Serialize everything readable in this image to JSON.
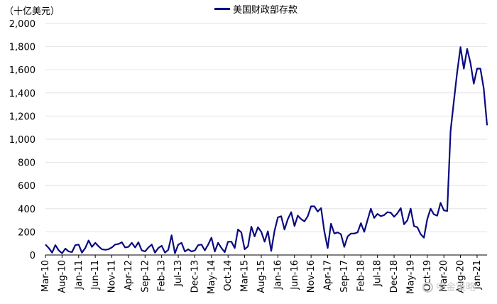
{
  "chart_data": {
    "type": "line",
    "unit_label": "（十亿美元）",
    "ylim": [
      0,
      2000
    ],
    "yticks": [
      0,
      200,
      400,
      600,
      800,
      1000,
      1200,
      1400,
      1600,
      1800,
      2000
    ],
    "ytick_labels": [
      "0",
      "200",
      "400",
      "600",
      "800",
      "1,000",
      "1,200",
      "1,400",
      "1,600",
      "1,800",
      "2,000"
    ],
    "xtick_labels": [
      "Mar-10",
      "Aug-10",
      "Jan-11",
      "Jun-11",
      "Nov-11",
      "Apr-12",
      "Sep-12",
      "Feb-13",
      "Jul-13",
      "Dec-13",
      "May-14",
      "Oct-14",
      "Mar-15",
      "Aug-15",
      "Jan-16",
      "Jun-16",
      "Nov-16",
      "Apr-17",
      "Sep-17",
      "Feb-18",
      "Jul-18",
      "Dec-18",
      "May-19",
      "Oct-19",
      "Mar-20",
      "Aug-20",
      "Jan-21"
    ],
    "series": [
      {
        "name": "美国财政部存款",
        "color": "#0a0a80",
        "values": [
          90,
          60,
          20,
          85,
          40,
          15,
          55,
          30,
          25,
          85,
          90,
          20,
          60,
          125,
          70,
          105,
          75,
          50,
          45,
          50,
          65,
          90,
          95,
          110,
          65,
          70,
          105,
          65,
          110,
          40,
          30,
          65,
          90,
          20,
          60,
          80,
          20,
          45,
          170,
          15,
          90,
          105,
          30,
          50,
          30,
          40,
          85,
          90,
          40,
          90,
          150,
          30,
          105,
          60,
          25,
          115,
          115,
          60,
          220,
          195,
          50,
          75,
          245,
          160,
          240,
          200,
          115,
          205,
          35,
          210,
          325,
          335,
          220,
          310,
          370,
          250,
          340,
          310,
          290,
          335,
          420,
          420,
          375,
          405,
          205,
          60,
          270,
          185,
          195,
          180,
          70,
          160,
          185,
          185,
          195,
          275,
          200,
          300,
          400,
          320,
          355,
          335,
          345,
          370,
          365,
          330,
          360,
          405,
          265,
          300,
          400,
          250,
          240,
          180,
          150,
          310,
          400,
          350,
          340,
          450,
          385,
          380,
          1070,
          1325,
          1580,
          1795,
          1610,
          1780,
          1660,
          1480,
          1610,
          1610,
          1440,
          1120
        ]
      }
    ],
    "watermark": "中金策略"
  }
}
